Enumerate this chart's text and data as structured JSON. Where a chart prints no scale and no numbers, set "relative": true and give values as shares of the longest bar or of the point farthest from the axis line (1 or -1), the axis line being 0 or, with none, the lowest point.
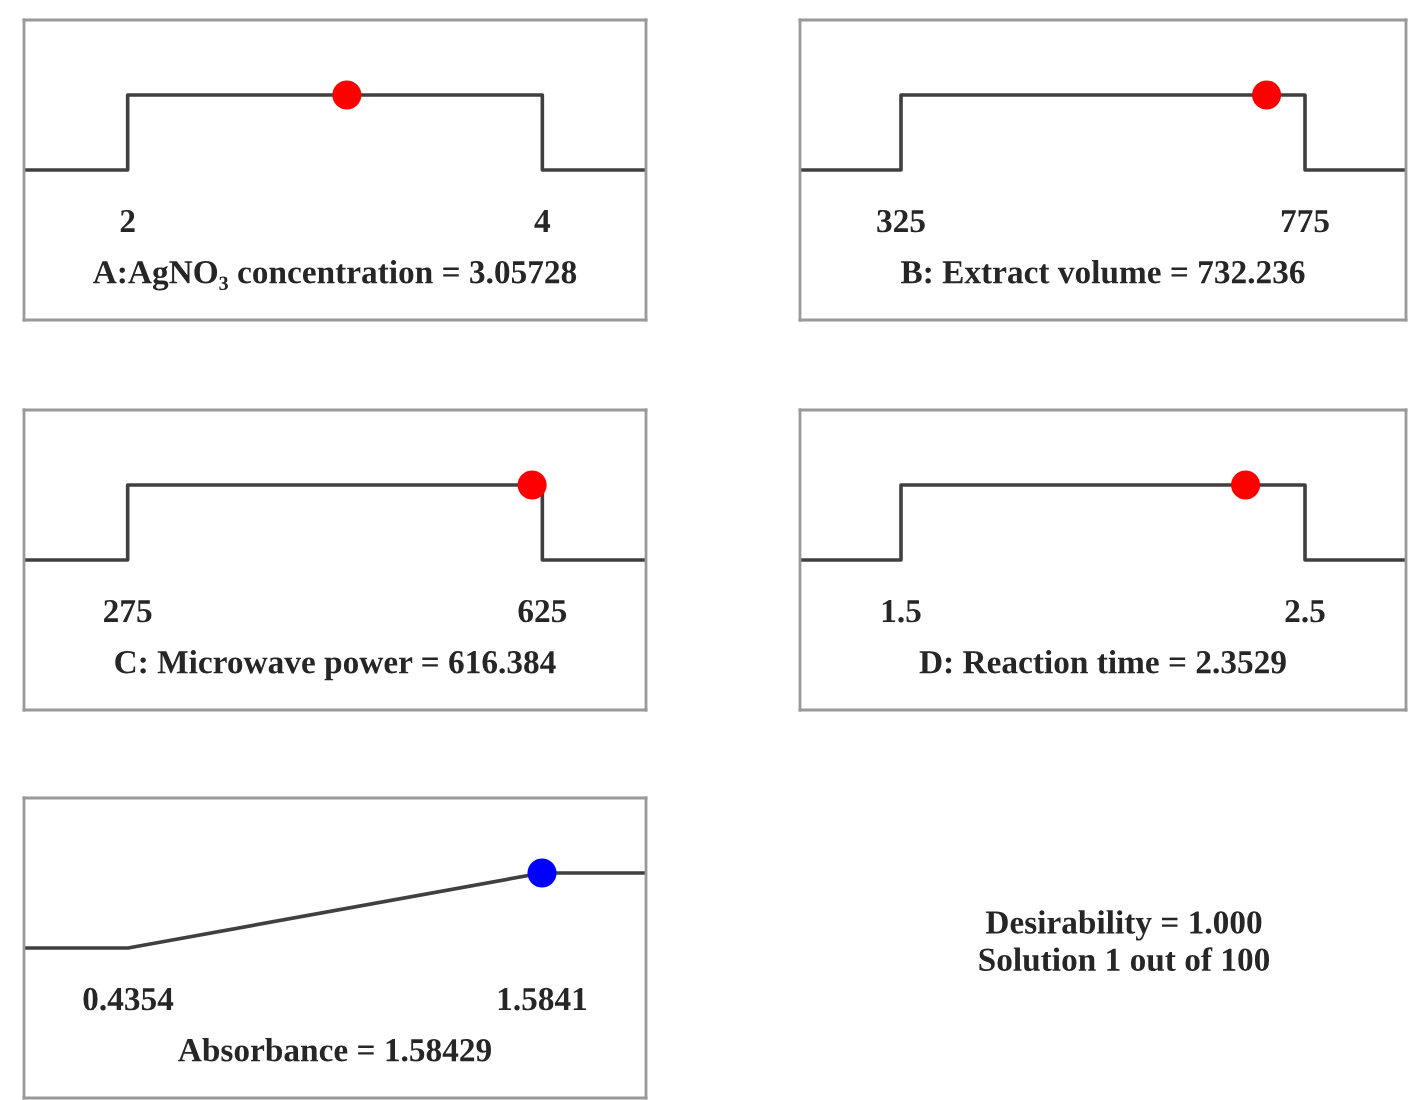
{
  "chart_data": [
    {
      "type": "line",
      "relative": true,
      "xlabel": "A:AgNO₃ concentration = 3.05728",
      "xlim": [
        1.5,
        4.5
      ],
      "xticks": [
        2,
        4
      ],
      "grid": false,
      "legend": false,
      "series": [
        {
          "color": "#404040",
          "marker": "none",
          "x": [
            1.5,
            2,
            2,
            4,
            4,
            4.5
          ],
          "values": [
            0,
            0,
            1,
            1,
            0,
            0
          ]
        },
        {
          "type": "scatter",
          "color": "#ff0000",
          "marker": "circle",
          "x": [
            3.05728
          ],
          "values": [
            1
          ]
        }
      ]
    },
    {
      "type": "line",
      "relative": true,
      "xlabel": "B: Extract volume = 732.236",
      "xlim": [
        212.5,
        887.5
      ],
      "xticks": [
        325,
        775
      ],
      "grid": false,
      "legend": false,
      "series": [
        {
          "color": "#404040",
          "marker": "none",
          "x": [
            212.5,
            325,
            325,
            775,
            775,
            887.5
          ],
          "values": [
            0,
            0,
            1,
            1,
            0,
            0
          ]
        },
        {
          "type": "scatter",
          "color": "#ff0000",
          "marker": "circle",
          "x": [
            732.236
          ],
          "values": [
            1
          ]
        }
      ]
    },
    {
      "type": "line",
      "relative": true,
      "xlabel": "C: Microwave power = 616.384",
      "xlim": [
        187.5,
        712.5
      ],
      "xticks": [
        275,
        625
      ],
      "grid": false,
      "legend": false,
      "series": [
        {
          "color": "#404040",
          "marker": "none",
          "x": [
            187.5,
            275,
            275,
            625,
            625,
            712.5
          ],
          "values": [
            0,
            0,
            1,
            1,
            0,
            0
          ]
        },
        {
          "type": "scatter",
          "color": "#ff0000",
          "marker": "circle",
          "x": [
            616.384
          ],
          "values": [
            1
          ]
        }
      ]
    },
    {
      "type": "line",
      "relative": true,
      "xlabel": "D: Reaction time = 2.3529",
      "xlim": [
        1.25,
        2.75
      ],
      "xticks": [
        1.5,
        2.5
      ],
      "grid": false,
      "legend": false,
      "series": [
        {
          "color": "#404040",
          "marker": "none",
          "x": [
            1.25,
            1.5,
            1.5,
            2.5,
            2.5,
            2.75
          ],
          "values": [
            0,
            0,
            1,
            1,
            0,
            0
          ]
        },
        {
          "type": "scatter",
          "color": "#ff0000",
          "marker": "circle",
          "x": [
            2.3529
          ],
          "values": [
            1
          ]
        }
      ]
    },
    {
      "type": "line",
      "relative": true,
      "xlabel": "Absorbance = 1.58429",
      "xlim": [
        0.1467,
        1.8728
      ],
      "xticks": [
        0.4354,
        1.5841
      ],
      "grid": false,
      "legend": false,
      "annotations": [
        "Desirability = 1.000\nSolution 1 out of 100"
      ],
      "series": [
        {
          "color": "#404040",
          "marker": "none",
          "x": [
            0.1467,
            0.4354,
            1.5841,
            1.8728
          ],
          "values": [
            0,
            0,
            1,
            1
          ]
        },
        {
          "type": "scatter",
          "color": "#0000ff",
          "marker": "circle",
          "x": [
            1.58429
          ],
          "values": [
            1
          ]
        }
      ]
    }
  ]
}
